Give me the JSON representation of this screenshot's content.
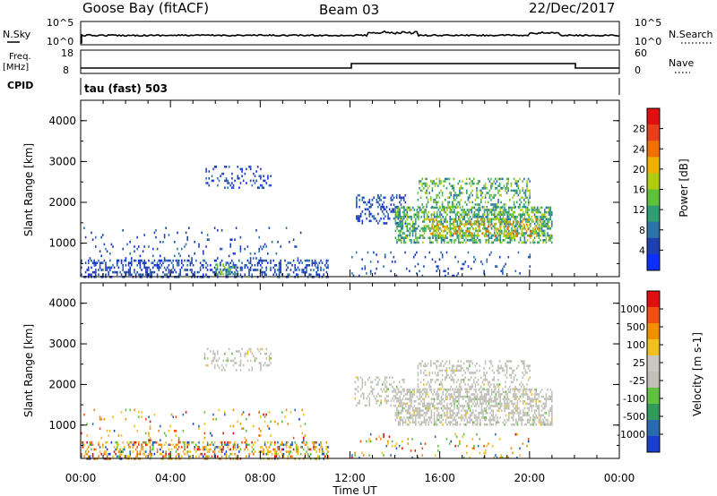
{
  "header": {
    "station": "Goose Bay (fitACF)",
    "beam": "Beam 03",
    "date": "22/Dec/2017"
  },
  "noise_panel": {
    "left_label": "N.Sky",
    "left_ticks": [
      "10^5",
      "10^0"
    ],
    "right_ticks": [
      "10^5",
      "10^0"
    ],
    "right_label": "N.Search"
  },
  "freq_panel": {
    "left_label_top": "Freq.",
    "left_label_unit": "[MHz]",
    "left_ticks": [
      "18",
      "8"
    ],
    "right_ticks": [
      "60",
      "0"
    ],
    "right_label": "Nave"
  },
  "cpid_panel": {
    "label": "CPID",
    "mode_text": "tau (fast) 503"
  },
  "chart_data": [
    {
      "type": "heatmap",
      "name": "power",
      "ylabel": "Slant Range [km]",
      "y_ticks": [
        "1000",
        "2000",
        "3000",
        "4000"
      ],
      "ylim": [
        180,
        4500
      ],
      "colorbar": {
        "label": "Power [dB]",
        "ticks": [
          "4",
          "8",
          "12",
          "16",
          "20",
          "24",
          "28"
        ],
        "colors": [
          "#0a2fff",
          "#1e3fb0",
          "#2a72a8",
          "#2f9e73",
          "#5fc03a",
          "#b0cc10",
          "#f0b000",
          "#f07000",
          "#e8401a",
          "#e01010"
        ]
      },
      "regions": [
        {
          "t": [
            0,
            11
          ],
          "r": [
            180,
            600
          ],
          "level": "low",
          "density": 0.35
        },
        {
          "t": [
            0,
            10
          ],
          "r": [
            600,
            1400
          ],
          "level": "low",
          "density": 0.06
        },
        {
          "t": [
            5.5,
            8.5
          ],
          "r": [
            2350,
            2900
          ],
          "level": "low",
          "density": 0.18
        },
        {
          "t": [
            6,
            7
          ],
          "r": [
            250,
            500
          ],
          "level": "mid",
          "density": 0.5
        },
        {
          "t": [
            12.2,
            14.5
          ],
          "r": [
            1500,
            2200
          ],
          "level": "low",
          "density": 0.3
        },
        {
          "t": [
            14,
            21
          ],
          "r": [
            1000,
            1900
          ],
          "level": "mid",
          "density": 0.55
        },
        {
          "t": [
            15,
            20
          ],
          "r": [
            1900,
            2600
          ],
          "level": "mid",
          "density": 0.3
        },
        {
          "t": [
            15.5,
            20.5
          ],
          "r": [
            1200,
            1600
          ],
          "level": "high",
          "density": 0.25
        },
        {
          "t": [
            12,
            20
          ],
          "r": [
            180,
            800
          ],
          "level": "low",
          "density": 0.08
        }
      ],
      "xlim": [
        0,
        24
      ]
    },
    {
      "type": "heatmap",
      "name": "velocity",
      "ylabel": "Slant Range [km]",
      "y_ticks": [
        "1000",
        "2000",
        "3000",
        "4000"
      ],
      "ylim": [
        180,
        4500
      ],
      "colorbar": {
        "label": "Velocity [m s-1]",
        "ticks": [
          "1000",
          "500",
          "100",
          "25",
          "-25",
          "-100",
          "-500",
          "-1000"
        ],
        "colors": [
          "#1a3fd0",
          "#2a6ab0",
          "#2f9a5a",
          "#60c040",
          "#c0c0b8",
          "#c8c8c0",
          "#f0c020",
          "#f09000",
          "#f05010",
          "#e01010"
        ]
      },
      "regions": [
        {
          "t": [
            0,
            11
          ],
          "r": [
            180,
            600
          ],
          "level": "mixed",
          "density": 0.35
        },
        {
          "t": [
            0,
            10
          ],
          "r": [
            600,
            1400
          ],
          "level": "mixed",
          "density": 0.06
        },
        {
          "t": [
            5.5,
            8.5
          ],
          "r": [
            2350,
            2900
          ],
          "level": "gray",
          "density": 0.18
        },
        {
          "t": [
            12.2,
            14.5
          ],
          "r": [
            1500,
            2200
          ],
          "level": "gray",
          "density": 0.3
        },
        {
          "t": [
            14,
            21
          ],
          "r": [
            1000,
            1900
          ],
          "level": "gray",
          "density": 0.55
        },
        {
          "t": [
            15,
            20
          ],
          "r": [
            1900,
            2600
          ],
          "level": "gray",
          "density": 0.3
        },
        {
          "t": [
            12,
            20
          ],
          "r": [
            180,
            800
          ],
          "level": "mixed",
          "density": 0.08
        }
      ],
      "xlim": [
        0,
        24
      ]
    }
  ],
  "x_axis": {
    "ticks": [
      "00:00",
      "04:00",
      "08:00",
      "12:00",
      "16:00",
      "20:00",
      "00:00"
    ],
    "label": "Time UT"
  }
}
